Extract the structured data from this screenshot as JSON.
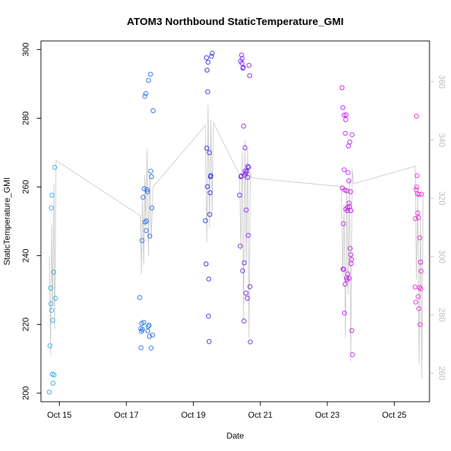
{
  "chart_data": {
    "type": "scatter",
    "title": "ATOM3 Northbound StaticTemperature_GMI",
    "xlabel": "Date",
    "ylabel": "StaticTemperature_GMI",
    "x_ticks": [
      "Oct 15",
      "Oct 17",
      "Oct 19",
      "Oct 21",
      "Oct 23",
      "Oct 25"
    ],
    "x_tick_values": [
      15,
      17,
      19,
      21,
      23,
      25
    ],
    "xlim": [
      14.45,
      26.05
    ],
    "ylim": [
      197.5,
      302.5
    ],
    "y_ticks": [
      200,
      220,
      240,
      260,
      280,
      300
    ],
    "y2lim": [
      250.2,
      374.0
    ],
    "y2_ticks": [
      260,
      280,
      300,
      320,
      340,
      360
    ],
    "grid": false,
    "colors": {
      "axis": "#000000",
      "line": "#cccccc",
      "right_axis": "#bbbbbb",
      "palette": [
        "#29abe2",
        "#1f6ee8",
        "#2b2bf0",
        "#7a20f2",
        "#c21ef0",
        "#ee2ad8"
      ]
    },
    "point_groups": [
      {
        "color_index": 0,
        "x": [
          14.7,
          14.72,
          14.74,
          14.76,
          14.78,
          14.8,
          14.83,
          14.86,
          14.88,
          14.75,
          14.77,
          14.81,
          14.84,
          14.79
        ],
        "y": [
          200.3,
          213.8,
          230.6,
          253.9,
          257.6,
          221.2,
          235.2,
          265.7,
          227.6,
          226.0,
          224.1,
          202.9,
          205.3,
          205.5
        ]
      },
      {
        "color_index": 1,
        "x": [
          17.4,
          17.43,
          17.45,
          17.47,
          17.5,
          17.53,
          17.55,
          17.58,
          17.6,
          17.63,
          17.65,
          17.68,
          17.7,
          17.73,
          17.76,
          17.78,
          17.48,
          17.52,
          17.56,
          17.62,
          17.66,
          17.72,
          17.75,
          17.8,
          17.46,
          17.59,
          17.69,
          17.74,
          17.44,
          17.64
        ],
        "y": [
          227.8,
          218.8,
          218.0,
          244.4,
          257.0,
          259.5,
          286.4,
          287.2,
          250.1,
          258.6,
          219.4,
          219.8,
          245.7,
          264.6,
          253.9,
          216.9,
          218.5,
          220.6,
          249.8,
          259.2,
          291.0,
          292.8,
          263.0,
          282.2,
          220.3,
          247.3,
          216.5,
          213.1,
          213.2,
          218.1
        ]
      },
      {
        "color_index": 2,
        "x": [
          19.36,
          19.38,
          19.4,
          19.42,
          19.44,
          19.46,
          19.48,
          19.5,
          19.52,
          19.54,
          19.56,
          19.39,
          19.41,
          19.43,
          19.45,
          19.47,
          19.49,
          19.51
        ],
        "y": [
          250.2,
          237.6,
          271.3,
          260.1,
          296.3,
          233.2,
          270.0,
          258.3,
          263.3,
          298.0,
          298.9,
          297.6,
          294.0,
          287.7,
          222.4,
          215.0,
          252.0,
          263.0
        ]
      },
      {
        "color_index": 3,
        "x": [
          20.38,
          20.4,
          20.42,
          20.44,
          20.46,
          20.48,
          20.5,
          20.52,
          20.54,
          20.56,
          20.58,
          20.6,
          20.62,
          20.64,
          20.66,
          20.68,
          20.7,
          20.41,
          20.45,
          20.49,
          20.53,
          20.57,
          20.61,
          20.65,
          20.69,
          20.43,
          20.47,
          20.51,
          20.55,
          20.63
        ],
        "y": [
          257.6,
          242.8,
          263.0,
          298.4,
          297.4,
          294.6,
          277.7,
          237.9,
          271.4,
          264.0,
          253.3,
          264.5,
          262.8,
          245.9,
          295.4,
          292.4,
          214.9,
          296.6,
          296.0,
          294.8,
          263.4,
          229.1,
          227.6,
          265.7,
          231.0,
          263.2,
          235.6,
          221.0,
          264.7,
          266.0
        ]
      },
      {
        "color_index": 4,
        "x": [
          23.44,
          23.46,
          23.48,
          23.5,
          23.52,
          23.54,
          23.56,
          23.58,
          23.6,
          23.62,
          23.64,
          23.66,
          23.68,
          23.7,
          23.72,
          23.74,
          23.47,
          23.49,
          23.51,
          23.53,
          23.55,
          23.57,
          23.59,
          23.61,
          23.63,
          23.65,
          23.67,
          23.69,
          23.71,
          23.73,
          23.75,
          23.45,
          23.5,
          23.55,
          23.6,
          23.65,
          23.7
        ],
        "y": [
          288.9,
          283.1,
          249.3,
          265.0,
          259.1,
          275.6,
          281.0,
          258.9,
          254.0,
          264.2,
          261.8,
          254.3,
          242.1,
          240.3,
          238.9,
          275.2,
          236.1,
          236.0,
          223.3,
          231.7,
          279.6,
          233.5,
          233.0,
          234.7,
          271.9,
          233.4,
          273.1,
          258.6,
          237.7,
          218.2,
          211.2,
          259.7,
          280.9,
          253.6,
          253.1,
          255.3,
          253.1
        ]
      },
      {
        "color_index": 5,
        "x": [
          25.62,
          25.64,
          25.66,
          25.68,
          25.7,
          25.72,
          25.74,
          25.76,
          25.78,
          25.8,
          25.65,
          25.67,
          25.69,
          25.71,
          25.73,
          25.75,
          25.77,
          25.79,
          25.81,
          25.63,
          25.78
        ],
        "y": [
          230.9,
          226.5,
          280.6,
          263.3,
          252.4,
          251.1,
          257.8,
          245.2,
          238.1,
          235.5,
          259.2,
          260.0,
          258.0,
          228.1,
          224.6,
          230.8,
          220.0,
          230.4,
          257.9,
          250.8,
          238.1
        ]
      }
    ],
    "line_series": {
      "y_axis": "right",
      "x": [
        14.7,
        14.74,
        14.77,
        14.8,
        14.84,
        14.86,
        14.88,
        14.9,
        17.42,
        17.45,
        17.48,
        17.52,
        17.55,
        17.58,
        17.62,
        17.66,
        17.7,
        17.74,
        17.78,
        17.8,
        19.36,
        19.4,
        19.44,
        19.48,
        19.52,
        19.56,
        19.6,
        20.38,
        20.42,
        20.46,
        20.5,
        20.54,
        20.58,
        20.62,
        20.66,
        20.7,
        20.74,
        23.42,
        23.46,
        23.5,
        23.54,
        23.58,
        23.62,
        23.66,
        23.7,
        23.74,
        23.78,
        25.62,
        25.66,
        25.7,
        25.74,
        25.78,
        25.82,
        25.86
      ],
      "y": [
        300,
        266,
        311,
        283,
        325,
        275,
        300,
        333,
        314,
        294,
        320,
        297,
        328,
        310,
        337,
        300,
        329,
        306,
        318,
        324,
        345,
        305,
        352,
        310,
        347,
        315,
        346,
        328,
        302,
        336,
        278,
        340,
        297,
        337,
        272,
        329,
        327,
        324,
        293,
        318,
        272,
        323,
        287,
        326,
        264,
        330,
        325,
        331,
        292,
        322,
        263,
        314,
        258,
        322
      ]
    }
  }
}
